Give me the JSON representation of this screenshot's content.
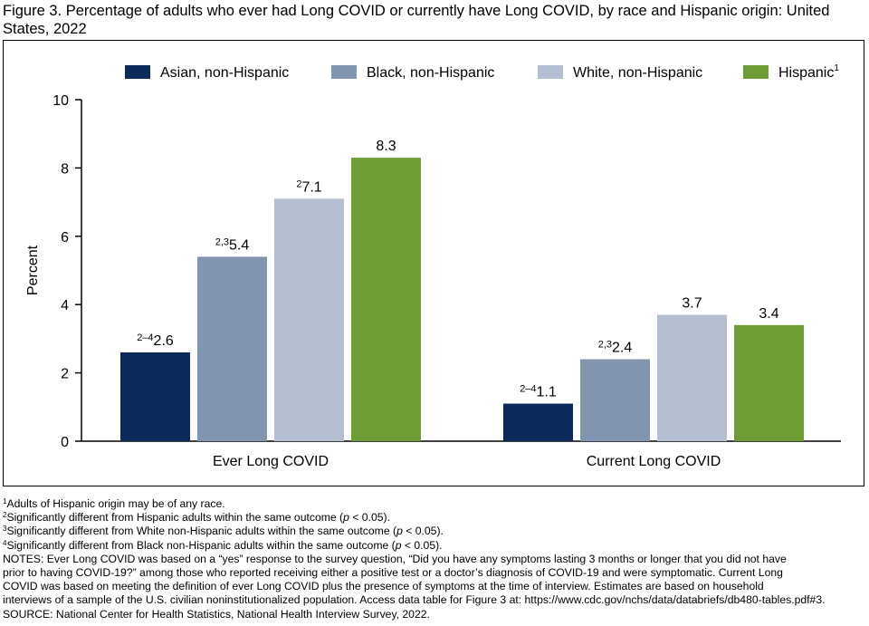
{
  "figure": {
    "title": "Figure 3. Percentage of adults who ever had Long COVID or currently have Long COVID, by race and Hispanic origin: United States, 2022"
  },
  "chart_data": {
    "type": "bar",
    "categories": [
      "Ever Long COVID",
      "Current Long COVID"
    ],
    "series": [
      {
        "name": "Asian, non-Hispanic",
        "name_sup": "",
        "color": "#0b2a5a",
        "values": [
          2.6,
          1.1
        ],
        "value_notes": [
          "2–4",
          "2–4"
        ]
      },
      {
        "name": "Black, non-Hispanic",
        "name_sup": "",
        "color": "#8195b0",
        "values": [
          5.4,
          2.4
        ],
        "value_notes": [
          "2,3",
          "2,3"
        ]
      },
      {
        "name": "White, non-Hispanic",
        "name_sup": "",
        "color": "#b4c0d1",
        "values": [
          7.1,
          3.7
        ],
        "value_notes": [
          "2",
          ""
        ]
      },
      {
        "name": "Hispanic",
        "name_sup": "1",
        "color": "#6d9d34",
        "values": [
          8.3,
          3.4
        ],
        "value_notes": [
          "",
          ""
        ]
      }
    ],
    "ylabel": "Percent",
    "xlabel": "",
    "ylim": [
      0,
      10
    ],
    "yticks": [
      0,
      2,
      4,
      6,
      8,
      10
    ],
    "grid": false,
    "legend_position": "top"
  },
  "footnotes": [
    {
      "sup": "1",
      "text": "Adults of Hispanic origin may be of any race."
    },
    {
      "sup": "2",
      "text": "Significantly different from Hispanic adults within the same outcome (",
      "italic": "p",
      "tail": " < 0.05)."
    },
    {
      "sup": "3",
      "text": "Significantly different from White non-Hispanic adults within the same outcome (",
      "italic": "p",
      "tail": " < 0.05)."
    },
    {
      "sup": "4",
      "text": "Significantly different from Black non-Hispanic adults within the same outcome (",
      "italic": "p",
      "tail": " < 0.05)."
    }
  ],
  "notes_lines": [
    "NOTES: Ever Long COVID was based on a “yes” response to the survey question, “Did you have any symptoms lasting 3 months or longer that you did not have",
    "prior to having COVID-19?” among those who reported receiving either a positive test or a doctor’s diagnosis of COVID-19 and were symptomatic. Current Long",
    "COVID was based on meeting the definition of ever Long COVID plus the presence of symptoms at the time of interview. Estimates are based on household",
    "interviews of a sample of the U.S. civilian noninstitutionalized population. Access data table for Figure 3 at: https://www.cdc.gov/nchs/data/databriefs/db480-tables.pdf#3."
  ],
  "source": "SOURCE: National Center for Health Statistics, National Health Interview Survey, 2022."
}
